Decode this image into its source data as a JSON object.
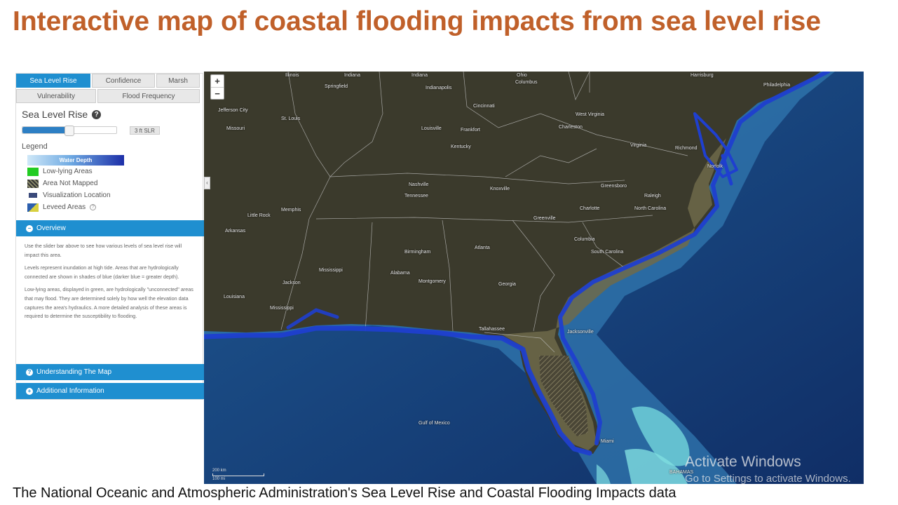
{
  "title": "Interactive map of coastal flooding impacts from sea level rise",
  "caption": "The National Oceanic and Atmospheric Administration's Sea Level Rise and Coastal Flooding Impacts data",
  "panel": {
    "tabs": [
      {
        "label": "Sea Level Rise",
        "active": true
      },
      {
        "label": "Confidence",
        "active": false
      },
      {
        "label": "Marsh",
        "active": false
      },
      {
        "label": "Vulnerability",
        "active": false
      },
      {
        "label": "Flood Frequency",
        "active": false
      }
    ],
    "section_title": "Sea Level Rise",
    "slider": {
      "value_label": "3 ft SLR",
      "level_fraction": 0.5
    },
    "legend_title": "Legend",
    "legend": {
      "water_depth": "Water Depth",
      "items": [
        {
          "label": "Low-lying Areas",
          "icon": "green-square"
        },
        {
          "label": "Area Not Mapped",
          "icon": "hatched-square"
        },
        {
          "label": "Visualization Location",
          "icon": "camera-icon"
        },
        {
          "label": "Leveed Areas",
          "icon": "levee-square"
        }
      ]
    },
    "accordions": {
      "overview": "Overview",
      "understanding": "Understanding The Map",
      "additional": "Additional Information"
    },
    "overview_paragraphs": [
      "Use the slider bar above to see how various levels of sea level rise will impact this area.",
      "Levels represent inundation at high tide. Areas that are hydrologically connected are shown in shades of blue (darker blue = greater depth).",
      "Low-lying areas, displayed in green, are hydrologically \"unconnected\" areas that may flood. They are determined solely by how well the elevation data captures the area's hydraulics. A more detailed analysis of these areas is required to determine the susceptibility to flooding."
    ]
  },
  "map": {
    "zoom_in": "+",
    "zoom_out": "−",
    "collapse": "‹",
    "scale_km": "200 km",
    "scale_mi": "100 mi",
    "labels": {
      "illinois": "Illinois",
      "indiana": "Indiana",
      "ohio": "Ohio",
      "springfield": "Springfield",
      "indianapolis": "Indianapolis",
      "columbus_oh": "Columbus",
      "jefferson_city": "Jefferson City",
      "st_louis": "St. Louis",
      "missouri": "Missouri",
      "cincinnati": "Cincinnati",
      "louisville": "Louisville",
      "frankfort": "Frankfort",
      "kentucky": "Kentucky",
      "west_virginia": "West Virginia",
      "charleston_wv": "Charleston",
      "virginia": "Virginia",
      "richmond": "Richmond",
      "harrisburg": "Harrisburg",
      "philadelphia": "Philadelphia",
      "norfolk": "Norfolk",
      "nashville": "Nashville",
      "tennessee": "Tennessee",
      "knoxville": "Knoxville",
      "greensboro": "Greensboro",
      "raleigh": "Raleigh",
      "north_carolina": "North Carolina",
      "charlotte": "Charlotte",
      "memphis": "Memphis",
      "little_rock": "Little Rock",
      "arkansas": "Arkansas",
      "greenville": "Greenville",
      "columbia": "Columbia",
      "south_carolina": "South Carolina",
      "atlanta": "Atlanta",
      "birmingham": "Birmingham",
      "alabama": "Alabama",
      "mississippi": "Mississippi",
      "georgia": "Georgia",
      "montgomery": "Montgomery",
      "jackson": "Jackson",
      "louisiana": "Louisiana",
      "mississippi_river": "Mississippi",
      "tallahassee": "Tallahassee",
      "jacksonville": "Jacksonville",
      "gulf_of_mexico": "Gulf of Mexico",
      "miami": "Miami",
      "bahamas": "BAHAMAS"
    }
  },
  "watermark": {
    "line1": "Activate Windows",
    "line2": "Go to Settings to activate Windows."
  },
  "colors": {
    "title": "#c0602a",
    "tab_active": "#1f8fd0",
    "ocean": "#1c4e86",
    "land": "#3b3a2c",
    "flood": "#1d3fbf",
    "shelf": "#5fa8c9"
  }
}
